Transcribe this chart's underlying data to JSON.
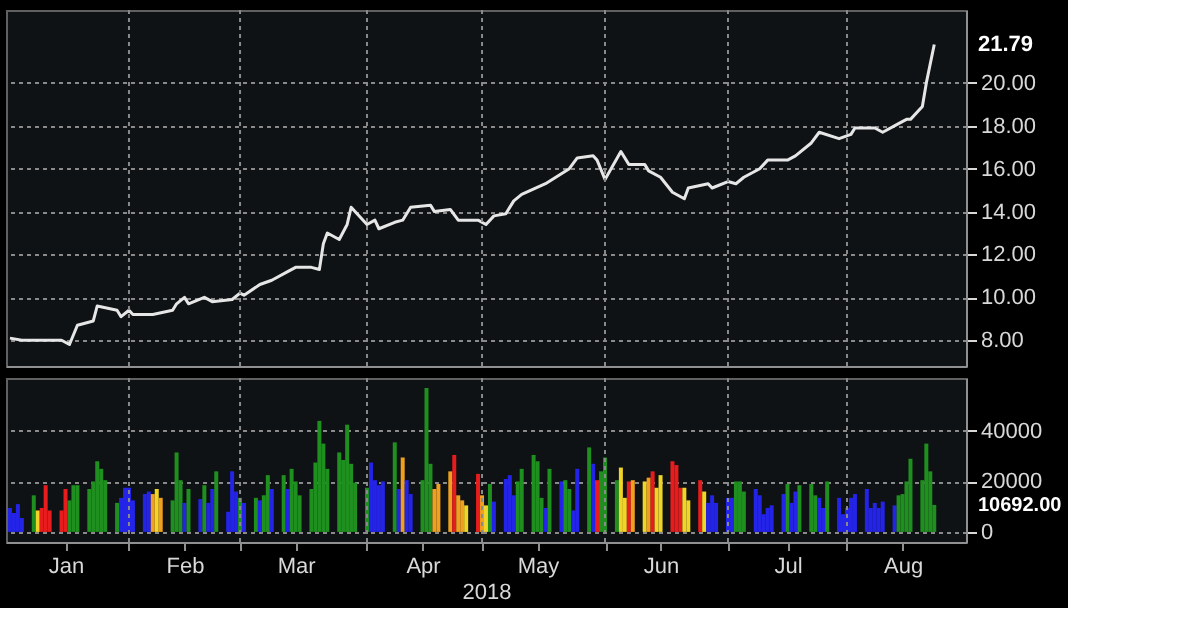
{
  "chart_data": [
    {
      "type": "line",
      "tick_labels": "y",
      "grid": true,
      "legend": false,
      "marker": "none",
      "line_style": "solid",
      "xlim": [
        "2018-01-01",
        "2018-08-31"
      ],
      "xticks": [
        {
          "value": "2018-02-01",
          "label": null
        },
        {
          "value": "2018-03-01",
          "label": null
        },
        {
          "value": "2018-04-02",
          "label": null
        },
        {
          "value": "2018-05-01",
          "label": null
        },
        {
          "value": "2018-06-01",
          "label": null
        },
        {
          "value": "2018-07-02",
          "label": null
        },
        {
          "value": "2018-08-01",
          "label": null
        }
      ],
      "ylim": [
        6.8,
        23.4
      ],
      "yticks": [
        {
          "value": 8,
          "label": "8.00"
        },
        {
          "value": 10,
          "label": "10.00"
        },
        {
          "value": 12,
          "label": "12.00"
        },
        {
          "value": 14,
          "label": "14.00"
        },
        {
          "value": 16,
          "label": "16.00"
        },
        {
          "value": 18,
          "label": "18.00"
        },
        {
          "value": 20,
          "label": "20.00"
        }
      ],
      "annotations": [
        {
          "text": "21.79",
          "x": "2018-08-23",
          "y": 21.79
        }
      ],
      "x": [
        "2018-01-02",
        "2018-01-05",
        "2018-01-10",
        "2018-01-15",
        "2018-01-17",
        "2018-01-19",
        "2018-01-23",
        "2018-01-24",
        "2018-01-29",
        "2018-01-30",
        "2018-02-01",
        "2018-02-02",
        "2018-02-07",
        "2018-02-12",
        "2018-02-13",
        "2018-02-15",
        "2018-02-16",
        "2018-02-20",
        "2018-02-22",
        "2018-02-27",
        "2018-03-01",
        "2018-03-02",
        "2018-03-06",
        "2018-03-09",
        "2018-03-13",
        "2018-03-15",
        "2018-03-19",
        "2018-03-21",
        "2018-03-22",
        "2018-03-23",
        "2018-03-26",
        "2018-03-28",
        "2018-03-29",
        "2018-04-02",
        "2018-04-04",
        "2018-04-05",
        "2018-04-09",
        "2018-04-11",
        "2018-04-13",
        "2018-04-18",
        "2018-04-19",
        "2018-04-23",
        "2018-04-25",
        "2018-04-30",
        "2018-05-02",
        "2018-05-04",
        "2018-05-07",
        "2018-05-09",
        "2018-05-11",
        "2018-05-17",
        "2018-05-23",
        "2018-05-25",
        "2018-05-29",
        "2018-05-30",
        "2018-06-01",
        "2018-06-05",
        "2018-06-07",
        "2018-06-11",
        "2018-06-12",
        "2018-06-15",
        "2018-06-18",
        "2018-06-21",
        "2018-06-22",
        "2018-06-27",
        "2018-06-28",
        "2018-07-02",
        "2018-07-04",
        "2018-07-06",
        "2018-07-10",
        "2018-07-12",
        "2018-07-17",
        "2018-07-19",
        "2018-07-23",
        "2018-07-25",
        "2018-07-30",
        "2018-08-02",
        "2018-08-03",
        "2018-08-08",
        "2018-08-10",
        "2018-08-14",
        "2018-08-16",
        "2018-08-17",
        "2018-08-20",
        "2018-08-21",
        "2018-08-22",
        "2018-08-23"
      ],
      "series": [
        {
          "color": "#e6e6e6",
          "values": [
            8.1,
            8.0,
            8.0,
            8.0,
            7.8,
            8.7,
            8.9,
            9.6,
            9.4,
            9.1,
            9.4,
            9.2,
            9.2,
            9.4,
            9.7,
            10.0,
            9.7,
            10.0,
            9.8,
            9.9,
            10.2,
            10.1,
            10.6,
            10.8,
            11.2,
            11.4,
            11.4,
            11.3,
            12.5,
            13.0,
            12.7,
            13.4,
            14.2,
            13.4,
            13.6,
            13.2,
            13.5,
            13.6,
            14.2,
            14.3,
            14.0,
            14.1,
            13.6,
            13.6,
            13.4,
            13.8,
            13.9,
            14.5,
            14.8,
            15.3,
            16.0,
            16.5,
            16.6,
            16.4,
            15.5,
            16.8,
            16.2,
            16.2,
            15.9,
            15.6,
            14.9,
            14.6,
            15.1,
            15.3,
            15.1,
            15.4,
            15.3,
            15.6,
            16.0,
            16.4,
            16.4,
            16.6,
            17.2,
            17.7,
            17.4,
            17.6,
            17.9,
            17.9,
            17.7,
            18.1,
            18.3,
            18.3,
            18.9,
            20.0,
            20.9,
            21.79
          ]
        }
      ]
    },
    {
      "type": "bar",
      "xlabel": "2018",
      "grid": true,
      "legend": false,
      "xlim": [
        "2018-01-01",
        "2018-08-31"
      ],
      "xticks": [
        {
          "value": "2018-01-16",
          "label": "Jan"
        },
        {
          "value": "2018-02-01",
          "label": null
        },
        {
          "value": "2018-02-15",
          "label": "Feb"
        },
        {
          "value": "2018-03-01",
          "label": null
        },
        {
          "value": "2018-03-15",
          "label": "Mar"
        },
        {
          "value": "2018-04-02",
          "label": null
        },
        {
          "value": "2018-04-16",
          "label": "Apr"
        },
        {
          "value": "2018-05-01",
          "label": null
        },
        {
          "value": "2018-05-15",
          "label": "May"
        },
        {
          "value": "2018-06-01",
          "label": null
        },
        {
          "value": "2018-06-15",
          "label": "Jun"
        },
        {
          "value": "2018-07-02",
          "label": null
        },
        {
          "value": "2018-07-17",
          "label": "Jul"
        },
        {
          "value": "2018-08-01",
          "label": null
        },
        {
          "value": "2018-08-15",
          "label": "Aug"
        }
      ],
      "ylim": [
        -4000,
        61000
      ],
      "yticks": [
        0,
        20000,
        40000
      ],
      "annotations": [
        {
          "text": "10692.00",
          "x": "2018-08-23",
          "y": 10692
        }
      ],
      "x": [
        "2018-01-02",
        "2018-01-03",
        "2018-01-04",
        "2018-01-05",
        "2018-01-08",
        "2018-01-09",
        "2018-01-10",
        "2018-01-11",
        "2018-01-12",
        "2018-01-15",
        "2018-01-16",
        "2018-01-17",
        "2018-01-18",
        "2018-01-19",
        "2018-01-22",
        "2018-01-23",
        "2018-01-24",
        "2018-01-25",
        "2018-01-26",
        "2018-01-29",
        "2018-01-30",
        "2018-01-31",
        "2018-02-01",
        "2018-02-02",
        "2018-02-05",
        "2018-02-06",
        "2018-02-07",
        "2018-02-08",
        "2018-02-09",
        "2018-02-12",
        "2018-02-13",
        "2018-02-14",
        "2018-02-15",
        "2018-02-16",
        "2018-02-19",
        "2018-02-20",
        "2018-02-21",
        "2018-02-22",
        "2018-02-23",
        "2018-02-26",
        "2018-02-27",
        "2018-02-28",
        "2018-03-01",
        "2018-03-02",
        "2018-03-05",
        "2018-03-06",
        "2018-03-07",
        "2018-03-08",
        "2018-03-09",
        "2018-03-12",
        "2018-03-13",
        "2018-03-14",
        "2018-03-15",
        "2018-03-16",
        "2018-03-19",
        "2018-03-20",
        "2018-03-21",
        "2018-03-22",
        "2018-03-23",
        "2018-03-26",
        "2018-03-27",
        "2018-03-28",
        "2018-03-29",
        "2018-03-30",
        "2018-04-02",
        "2018-04-03",
        "2018-04-04",
        "2018-04-05",
        "2018-04-06",
        "2018-04-09",
        "2018-04-10",
        "2018-04-11",
        "2018-04-12",
        "2018-04-13",
        "2018-04-16",
        "2018-04-17",
        "2018-04-18",
        "2018-04-19",
        "2018-04-20",
        "2018-04-23",
        "2018-04-24",
        "2018-04-25",
        "2018-04-26",
        "2018-04-27",
        "2018-04-30",
        "2018-05-01",
        "2018-05-02",
        "2018-05-03",
        "2018-05-04",
        "2018-05-07",
        "2018-05-08",
        "2018-05-09",
        "2018-05-10",
        "2018-05-11",
        "2018-05-14",
        "2018-05-15",
        "2018-05-16",
        "2018-05-17",
        "2018-05-18",
        "2018-05-21",
        "2018-05-22",
        "2018-05-23",
        "2018-05-24",
        "2018-05-25",
        "2018-05-28",
        "2018-05-29",
        "2018-05-30",
        "2018-05-31",
        "2018-06-01",
        "2018-06-04",
        "2018-06-05",
        "2018-06-06",
        "2018-06-07",
        "2018-06-08",
        "2018-06-11",
        "2018-06-12",
        "2018-06-13",
        "2018-06-14",
        "2018-06-15",
        "2018-06-18",
        "2018-06-19",
        "2018-06-20",
        "2018-06-21",
        "2018-06-22",
        "2018-06-25",
        "2018-06-26",
        "2018-06-27",
        "2018-06-28",
        "2018-06-29",
        "2018-07-02",
        "2018-07-03",
        "2018-07-04",
        "2018-07-05",
        "2018-07-06",
        "2018-07-09",
        "2018-07-10",
        "2018-07-11",
        "2018-07-12",
        "2018-07-13",
        "2018-07-16",
        "2018-07-17",
        "2018-07-18",
        "2018-07-19",
        "2018-07-20",
        "2018-07-23",
        "2018-07-24",
        "2018-07-25",
        "2018-07-26",
        "2018-07-27",
        "2018-07-30",
        "2018-07-31",
        "2018-08-01",
        "2018-08-02",
        "2018-08-03",
        "2018-08-06",
        "2018-08-07",
        "2018-08-08",
        "2018-08-09",
        "2018-08-10",
        "2018-08-13",
        "2018-08-14",
        "2018-08-15",
        "2018-08-16",
        "2018-08-17",
        "2018-08-20",
        "2018-08-21",
        "2018-08-22",
        "2018-08-23"
      ],
      "values": [
        9500,
        7500,
        11000,
        5500,
        14500,
        8500,
        9500,
        18500,
        8500,
        8500,
        17000,
        12500,
        18500,
        18500,
        17000,
        20000,
        28000,
        25000,
        20500,
        11500,
        13500,
        17500,
        17500,
        12500,
        15000,
        16000,
        15000,
        17000,
        13500,
        12500,
        31500,
        20500,
        11500,
        17000,
        13000,
        18500,
        11500,
        17000,
        24000,
        8000,
        24000,
        16000,
        13500,
        11500,
        13500,
        12500,
        14500,
        22500,
        17000,
        22500,
        17000,
        25000,
        20000,
        14500,
        17000,
        27500,
        44000,
        35000,
        25000,
        31500,
        28500,
        42500,
        27000,
        19500,
        17500,
        27500,
        20500,
        18500,
        20000,
        35500,
        17000,
        29500,
        20500,
        15000,
        20500,
        57000,
        27000,
        17000,
        19000,
        24000,
        30500,
        14500,
        12500,
        10500,
        23000,
        14500,
        10500,
        19000,
        12000,
        21000,
        22500,
        14500,
        20000,
        25000,
        30500,
        28000,
        13500,
        9500,
        25000,
        20000,
        20500,
        17000,
        8500,
        25000,
        33500,
        27000,
        20500,
        24000,
        29500,
        20500,
        25500,
        13500,
        20000,
        20500,
        20000,
        21500,
        24000,
        17500,
        22500,
        28000,
        26500,
        17500,
        17500,
        12500,
        20500,
        16000,
        11500,
        14500,
        11500,
        13500,
        13500,
        20000,
        20000,
        16000,
        17000,
        14500,
        7000,
        9500,
        10500,
        15000,
        19000,
        11500,
        16000,
        18500,
        19000,
        14500,
        13500,
        9500,
        20000,
        13500,
        7000,
        9500,
        13500,
        15000,
        17000,
        9500,
        11500,
        9500,
        12000,
        10500,
        14500,
        15000,
        20000,
        29000,
        20500,
        35000,
        24000,
        10692
      ],
      "colors": [
        "#2424e8",
        "#2424e8",
        "#2424e8",
        "#2424e8",
        "#1f8f1f",
        "#f0d428",
        "#e81c1c",
        "#e81c1c",
        "#e81c1c",
        "#e81c1c",
        "#e81c1c",
        "#1f8f1f",
        "#1f8f1f",
        "#1f8f1f",
        "#1f8f1f",
        "#1f8f1f",
        "#1f8f1f",
        "#1f8f1f",
        "#1f8f1f",
        "#1f8f1f",
        "#2424e8",
        "#2424e8",
        "#2424e8",
        "#2424e8",
        "#2424e8",
        "#2424e8",
        "#f0a020",
        "#f0d428",
        "#f0a020",
        "#1f8f1f",
        "#1f8f1f",
        "#1f8f1f",
        "#2424e8",
        "#1f8f1f",
        "#2424e8",
        "#1f8f1f",
        "#2424e8",
        "#2424e8",
        "#1f8f1f",
        "#2424e8",
        "#2424e8",
        "#2424e8",
        "#1f8f1f",
        "#2424e8",
        "#1f8f1f",
        "#2424e8",
        "#1f8f1f",
        "#1f8f1f",
        "#2424e8",
        "#1f8f1f",
        "#2424e8",
        "#1f8f1f",
        "#1f8f1f",
        "#1f8f1f",
        "#1f8f1f",
        "#1f8f1f",
        "#1f8f1f",
        "#1f8f1f",
        "#1f8f1f",
        "#1f8f1f",
        "#1f8f1f",
        "#1f8f1f",
        "#1f8f1f",
        "#1f8f1f",
        "#1f8f1f",
        "#2424e8",
        "#2424e8",
        "#2424e8",
        "#2424e8",
        "#1f8f1f",
        "#2424e8",
        "#f0a020",
        "#2424e8",
        "#2424e8",
        "#1f8f1f",
        "#1f8f1f",
        "#1f8f1f",
        "#f0a020",
        "#f0a020",
        "#f0a020",
        "#e81c1c",
        "#f0a020",
        "#f0a020",
        "#f0d428",
        "#e81c1c",
        "#f0a020",
        "#f0d428",
        "#1f8f1f",
        "#2424e8",
        "#2424e8",
        "#2424e8",
        "#2424e8",
        "#1f8f1f",
        "#1f8f1f",
        "#1f8f1f",
        "#1f8f1f",
        "#1f8f1f",
        "#2424e8",
        "#1f8f1f",
        "#2424e8",
        "#1f8f1f",
        "#1f8f1f",
        "#2424e8",
        "#2424e8",
        "#1f8f1f",
        "#2424e8",
        "#e81c1c",
        "#1f8f1f",
        "#1f8f1f",
        "#1f8f1f",
        "#f0d428",
        "#f0d428",
        "#e81c1c",
        "#f0a020",
        "#f0d428",
        "#f0a020",
        "#e81c1c",
        "#f0d428",
        "#f0d428",
        "#e81c1c",
        "#e81c1c",
        "#e81c1c",
        "#f0d428",
        "#f0d428",
        "#e81c1c",
        "#f0d428",
        "#2424e8",
        "#2424e8",
        "#2424e8",
        "#2424e8",
        "#2424e8",
        "#1f8f1f",
        "#1f8f1f",
        "#1f8f1f",
        "#2424e8",
        "#2424e8",
        "#2424e8",
        "#2424e8",
        "#2424e8",
        "#2424e8",
        "#1f8f1f",
        "#2424e8",
        "#2424e8",
        "#1f8f1f",
        "#1f8f1f",
        "#1f8f1f",
        "#2424e8",
        "#2424e8",
        "#1f8f1f",
        "#2424e8",
        "#2424e8",
        "#2424e8",
        "#2424e8",
        "#2424e8",
        "#2424e8",
        "#2424e8",
        "#2424e8",
        "#2424e8",
        "#2424e8",
        "#2424e8",
        "#1f8f1f",
        "#1f8f1f",
        "#1f8f1f",
        "#1f8f1f",
        "#1f8f1f",
        "#1f8f1f",
        "#1f8f1f",
        "#1f8f1f"
      ]
    }
  ]
}
